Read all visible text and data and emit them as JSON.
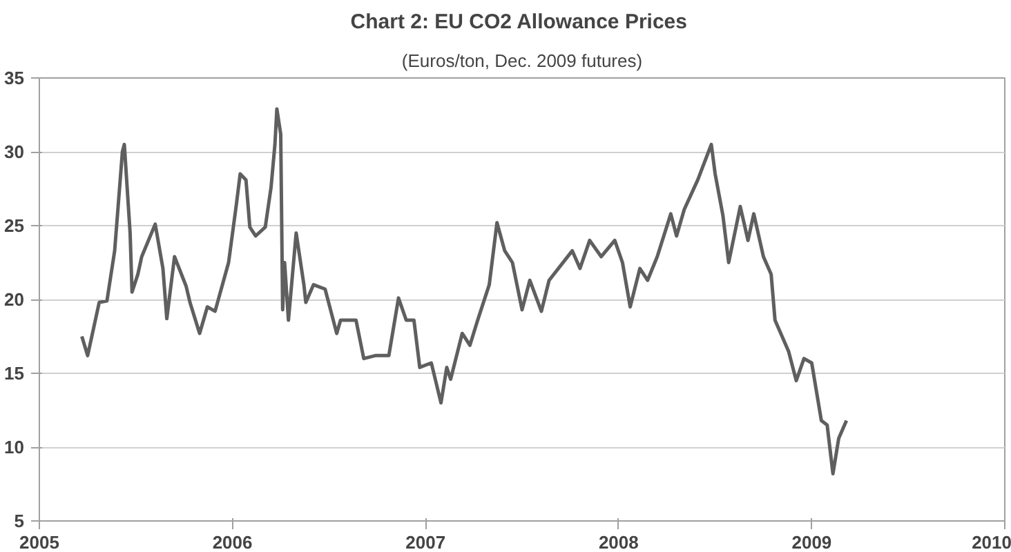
{
  "chart_data": {
    "type": "line",
    "title": "Chart 2:  EU CO2 Allowance Prices",
    "subtitle": "(Euros/ton, Dec. 2009 futures)",
    "x": [
      2005.22,
      2005.25,
      2005.31,
      2005.35,
      2005.39,
      2005.43,
      2005.44,
      2005.47,
      2005.48,
      2005.51,
      2005.53,
      2005.6,
      2005.64,
      2005.66,
      2005.7,
      2005.76,
      2005.78,
      2005.83,
      2005.87,
      2005.91,
      2005.98,
      2006.02,
      2006.04,
      2006.07,
      2006.09,
      2006.12,
      2006.17,
      2006.2,
      2006.22,
      2006.23,
      2006.25,
      2006.26,
      2006.27,
      2006.29,
      2006.33,
      2006.37,
      2006.38,
      2006.42,
      2006.48,
      2006.54,
      2006.56,
      2006.64,
      2006.68,
      2006.74,
      2006.81,
      2006.86,
      2006.9,
      2006.94,
      2006.97,
      2007.03,
      2007.08,
      2007.11,
      2007.13,
      2007.19,
      2007.23,
      2007.27,
      2007.33,
      2007.37,
      2007.41,
      2007.45,
      2007.5,
      2007.54,
      2007.6,
      2007.64,
      2007.76,
      2007.8,
      2007.85,
      2007.91,
      2007.98,
      2008.02,
      2008.06,
      2008.11,
      2008.15,
      2008.2,
      2008.27,
      2008.3,
      2008.34,
      2008.41,
      2008.48,
      2008.5,
      2008.54,
      2008.57,
      2008.63,
      2008.67,
      2008.7,
      2008.75,
      2008.79,
      2008.81,
      2008.88,
      2008.92,
      2008.96,
      2009.0,
      2009.05,
      2009.08,
      2009.11,
      2009.14,
      2009.18
    ],
    "series": [
      {
        "color": "#5f5f5f",
        "values": [
          17.5,
          16.2,
          19.8,
          19.9,
          23.3,
          30,
          30.5,
          24.5,
          20.5,
          21.7,
          22.9,
          25.1,
          22.1,
          18.7,
          22.9,
          20.9,
          19.8,
          17.7,
          19.5,
          19.2,
          22.5,
          26.4,
          28.5,
          28.1,
          24.9,
          24.3,
          24.9,
          27.6,
          30.5,
          32.9,
          31.2,
          19.3,
          22.5,
          18.6,
          24.5,
          21,
          19.8,
          21,
          20.7,
          17.7,
          18.6,
          18.6,
          16,
          16.2,
          16.2,
          20.1,
          18.6,
          18.6,
          15.4,
          15.7,
          13,
          15.4,
          14.6,
          17.7,
          16.9,
          18.6,
          21,
          25.2,
          23.3,
          22.5,
          19.3,
          21.3,
          19.2,
          21.3,
          23.3,
          22.1,
          24,
          22.9,
          24,
          22.5,
          19.5,
          22.1,
          21.3,
          22.9,
          25.8,
          24.3,
          26.1,
          28.1,
          30.5,
          28.5,
          25.7,
          22.5,
          26.3,
          24,
          25.8,
          22.9,
          21.7,
          18.6,
          16.5,
          14.5,
          16,
          15.7,
          11.8,
          11.5,
          8.2,
          10.6,
          11.8
        ]
      }
    ],
    "xlim": [
      2005,
      2010
    ],
    "xticks": [
      2005,
      2006,
      2007,
      2008,
      2009,
      2010
    ],
    "ylim": [
      5,
      35
    ],
    "yticks": [
      5,
      10,
      15,
      20,
      25,
      30,
      35
    ],
    "grid": "y",
    "marker": "none",
    "line_style": "solid"
  }
}
